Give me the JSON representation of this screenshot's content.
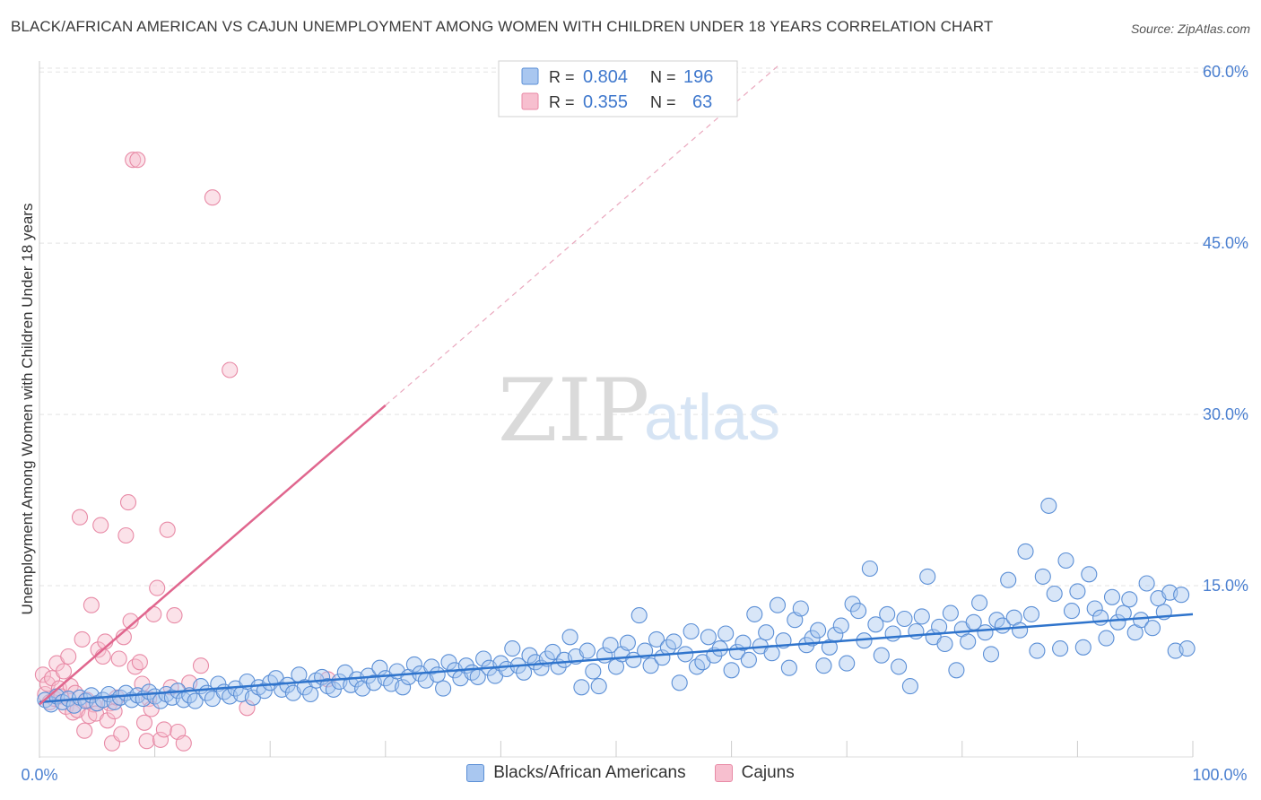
{
  "title": "BLACK/AFRICAN AMERICAN VS CAJUN UNEMPLOYMENT AMONG WOMEN WITH CHILDREN UNDER 18 YEARS CORRELATION CHART",
  "source": "Source: ZipAtlas.com",
  "watermark": {
    "zip": "ZIP",
    "atlas": "atlas"
  },
  "colors": {
    "blue_fill": "#a9c7f0",
    "blue_stroke": "#5b8fd6",
    "blue_line": "#2f74cc",
    "pink_fill": "#f7bfcf",
    "pink_stroke": "#e88aa6",
    "pink_line": "#e0668e",
    "grid": "#e3e3e3",
    "axis_text": "#4a7fd0"
  },
  "legend_top": {
    "rows": [
      {
        "r_label": "R =",
        "r_value": "0.804",
        "n_label": "N =",
        "n_value": "196"
      },
      {
        "r_label": "R =",
        "r_value": "0.355",
        "n_label": "N =",
        "n_value": "63"
      }
    ]
  },
  "legend_bottom": [
    {
      "label": "Blacks/African Americans"
    },
    {
      "label": "Cajuns"
    }
  ],
  "chart_data": {
    "type": "scatter",
    "title": "BLACK/AFRICAN AMERICAN VS CAJUN UNEMPLOYMENT AMONG WOMEN WITH CHILDREN UNDER 18 YEARS CORRELATION CHART",
    "xlabel": "",
    "ylabel": "Unemployment Among Women with Children Under 18 years",
    "xlim": [
      0,
      100
    ],
    "ylim": [
      0,
      63
    ],
    "x_tick_labels": [
      "0.0%",
      "100.0%"
    ],
    "y_ticks": [
      15,
      30,
      45,
      60
    ],
    "y_tick_labels": [
      "15.0%",
      "30.0%",
      "45.0%",
      "60.0%"
    ],
    "series": [
      {
        "name": "Blacks/African Americans",
        "R": 0.804,
        "N": 196,
        "trend": {
          "x0": 0,
          "y0": 4.8,
          "x1": 100,
          "y1": 12.5
        },
        "points": [
          [
            0.5,
            5.0
          ],
          [
            1,
            4.6
          ],
          [
            1.5,
            5.3
          ],
          [
            2,
            4.8
          ],
          [
            2.5,
            5.1
          ],
          [
            3,
            4.5
          ],
          [
            3.5,
            5.2
          ],
          [
            4,
            4.9
          ],
          [
            4.5,
            5.4
          ],
          [
            5,
            4.7
          ],
          [
            5.5,
            5.0
          ],
          [
            6,
            5.5
          ],
          [
            6.5,
            4.8
          ],
          [
            7,
            5.2
          ],
          [
            7.5,
            5.6
          ],
          [
            8,
            5.0
          ],
          [
            8.5,
            5.4
          ],
          [
            9,
            5.1
          ],
          [
            9.5,
            5.7
          ],
          [
            10,
            5.3
          ],
          [
            10.5,
            4.9
          ],
          [
            11,
            5.5
          ],
          [
            11.5,
            5.2
          ],
          [
            12,
            5.8
          ],
          [
            12.5,
            5.0
          ],
          [
            13,
            5.4
          ],
          [
            13.5,
            4.9
          ],
          [
            14,
            6.2
          ],
          [
            14.5,
            5.6
          ],
          [
            15,
            5.1
          ],
          [
            15.5,
            6.4
          ],
          [
            16,
            5.7
          ],
          [
            16.5,
            5.3
          ],
          [
            17,
            6.0
          ],
          [
            17.5,
            5.5
          ],
          [
            18,
            6.6
          ],
          [
            18.5,
            5.2
          ],
          [
            19,
            6.1
          ],
          [
            19.5,
            5.8
          ],
          [
            20,
            6.5
          ],
          [
            20.5,
            6.9
          ],
          [
            21,
            5.9
          ],
          [
            21.5,
            6.3
          ],
          [
            22,
            5.6
          ],
          [
            22.5,
            7.2
          ],
          [
            23,
            6.1
          ],
          [
            23.5,
            5.5
          ],
          [
            24,
            6.7
          ],
          [
            24.5,
            7.0
          ],
          [
            25,
            6.2
          ],
          [
            25.5,
            5.9
          ],
          [
            26,
            6.6
          ],
          [
            26.5,
            7.4
          ],
          [
            27,
            6.3
          ],
          [
            27.5,
            6.8
          ],
          [
            28,
            6.0
          ],
          [
            28.5,
            7.1
          ],
          [
            29,
            6.5
          ],
          [
            29.5,
            7.8
          ],
          [
            30,
            6.9
          ],
          [
            30.5,
            6.4
          ],
          [
            31,
            7.5
          ],
          [
            31.5,
            6.1
          ],
          [
            32,
            7.0
          ],
          [
            32.5,
            8.1
          ],
          [
            33,
            7.3
          ],
          [
            33.5,
            6.7
          ],
          [
            34,
            7.9
          ],
          [
            34.5,
            7.2
          ],
          [
            35,
            6.0
          ],
          [
            35.5,
            8.3
          ],
          [
            36,
            7.6
          ],
          [
            36.5,
            6.9
          ],
          [
            37,
            8.0
          ],
          [
            37.5,
            7.4
          ],
          [
            38,
            7.0
          ],
          [
            38.5,
            8.6
          ],
          [
            39,
            7.8
          ],
          [
            39.5,
            7.1
          ],
          [
            40,
            8.2
          ],
          [
            40.5,
            7.7
          ],
          [
            41,
            9.5
          ],
          [
            41.5,
            8.0
          ],
          [
            42,
            7.4
          ],
          [
            42.5,
            8.9
          ],
          [
            43,
            8.3
          ],
          [
            43.5,
            7.8
          ],
          [
            44,
            8.6
          ],
          [
            44.5,
            9.2
          ],
          [
            45,
            7.9
          ],
          [
            45.5,
            8.5
          ],
          [
            46,
            10.5
          ],
          [
            46.5,
            8.8
          ],
          [
            47,
            6.1
          ],
          [
            47.5,
            9.3
          ],
          [
            48,
            7.5
          ],
          [
            48.5,
            6.2
          ],
          [
            49,
            8.9
          ],
          [
            49.5,
            9.8
          ],
          [
            50,
            7.9
          ],
          [
            50.5,
            9.0
          ],
          [
            51,
            10.0
          ],
          [
            51.5,
            8.5
          ],
          [
            52,
            12.4
          ],
          [
            52.5,
            9.3
          ],
          [
            53,
            8.0
          ],
          [
            53.5,
            10.3
          ],
          [
            54,
            8.7
          ],
          [
            54.5,
            9.6
          ],
          [
            55,
            10.1
          ],
          [
            55.5,
            6.5
          ],
          [
            56,
            9.0
          ],
          [
            56.5,
            11.0
          ],
          [
            57,
            7.9
          ],
          [
            57.5,
            8.3
          ],
          [
            58,
            10.5
          ],
          [
            58.5,
            8.9
          ],
          [
            59,
            9.5
          ],
          [
            59.5,
            10.8
          ],
          [
            60,
            7.6
          ],
          [
            60.5,
            9.2
          ],
          [
            61,
            10.0
          ],
          [
            61.5,
            8.5
          ],
          [
            62,
            12.5
          ],
          [
            62.5,
            9.7
          ],
          [
            63,
            10.9
          ],
          [
            63.5,
            9.1
          ],
          [
            64,
            13.3
          ],
          [
            64.5,
            10.2
          ],
          [
            65,
            7.8
          ],
          [
            65.5,
            12.0
          ],
          [
            66,
            13.0
          ],
          [
            66.5,
            9.8
          ],
          [
            67,
            10.4
          ],
          [
            67.5,
            11.1
          ],
          [
            68,
            8.0
          ],
          [
            68.5,
            9.6
          ],
          [
            69,
            10.7
          ],
          [
            69.5,
            11.5
          ],
          [
            70,
            8.2
          ],
          [
            70.5,
            13.4
          ],
          [
            71,
            12.8
          ],
          [
            71.5,
            10.2
          ],
          [
            72,
            16.5
          ],
          [
            72.5,
            11.6
          ],
          [
            73,
            8.9
          ],
          [
            73.5,
            12.5
          ],
          [
            74,
            10.8
          ],
          [
            74.5,
            7.9
          ],
          [
            75,
            12.1
          ],
          [
            75.5,
            6.2
          ],
          [
            76,
            11.0
          ],
          [
            76.5,
            12.3
          ],
          [
            77,
            15.8
          ],
          [
            77.5,
            10.5
          ],
          [
            78,
            11.4
          ],
          [
            78.5,
            9.9
          ],
          [
            79,
            12.6
          ],
          [
            79.5,
            7.6
          ],
          [
            80,
            11.2
          ],
          [
            80.5,
            10.1
          ],
          [
            81,
            11.8
          ],
          [
            81.5,
            13.5
          ],
          [
            82,
            10.9
          ],
          [
            82.5,
            9.0
          ],
          [
            83,
            12.0
          ],
          [
            83.5,
            11.5
          ],
          [
            84,
            15.5
          ],
          [
            84.5,
            12.2
          ],
          [
            85,
            11.1
          ],
          [
            85.5,
            18.0
          ],
          [
            86,
            12.5
          ],
          [
            86.5,
            9.3
          ],
          [
            87,
            15.8
          ],
          [
            87.5,
            22.0
          ],
          [
            88,
            14.3
          ],
          [
            88.5,
            9.5
          ],
          [
            89,
            17.2
          ],
          [
            89.5,
            12.8
          ],
          [
            90,
            14.5
          ],
          [
            90.5,
            9.6
          ],
          [
            91,
            16.0
          ],
          [
            91.5,
            13.0
          ],
          [
            92,
            12.2
          ],
          [
            92.5,
            10.4
          ],
          [
            93,
            14.0
          ],
          [
            93.5,
            11.8
          ],
          [
            94,
            12.6
          ],
          [
            94.5,
            13.8
          ],
          [
            95,
            10.9
          ],
          [
            95.5,
            12.0
          ],
          [
            96,
            15.2
          ],
          [
            96.5,
            11.3
          ],
          [
            97,
            13.9
          ],
          [
            97.5,
            12.7
          ],
          [
            98,
            14.4
          ],
          [
            98.5,
            9.3
          ],
          [
            99,
            14.2
          ],
          [
            99.5,
            9.5
          ]
        ]
      },
      {
        "name": "Cajuns",
        "R": 0.355,
        "N": 63,
        "trend": {
          "x0": 0,
          "y0": 4.6,
          "x1": 30,
          "y1": 30.8
        },
        "trend_dashed": {
          "x0": 30,
          "y0": 30.8,
          "x1": 64,
          "y1": 60.5
        },
        "points": [
          [
            0.3,
            7.2
          ],
          [
            0.5,
            5.5
          ],
          [
            0.7,
            6.4
          ],
          [
            0.9,
            4.8
          ],
          [
            1.1,
            6.9
          ],
          [
            1.3,
            5.1
          ],
          [
            1.5,
            8.2
          ],
          [
            1.7,
            6.0
          ],
          [
            1.9,
            5.3
          ],
          [
            2.1,
            7.5
          ],
          [
            2.3,
            4.4
          ],
          [
            2.5,
            8.8
          ],
          [
            2.7,
            6.2
          ],
          [
            2.9,
            3.9
          ],
          [
            3.1,
            5.6
          ],
          [
            3.3,
            4.1
          ],
          [
            3.5,
            21.0
          ],
          [
            3.7,
            10.3
          ],
          [
            3.9,
            2.3
          ],
          [
            4.1,
            5.0
          ],
          [
            4.3,
            3.6
          ],
          [
            4.5,
            13.3
          ],
          [
            4.7,
            4.6
          ],
          [
            4.9,
            3.8
          ],
          [
            5.1,
            9.4
          ],
          [
            5.3,
            20.3
          ],
          [
            5.5,
            8.8
          ],
          [
            5.7,
            10.1
          ],
          [
            5.9,
            3.2
          ],
          [
            6.1,
            4.7
          ],
          [
            6.3,
            1.2
          ],
          [
            6.5,
            4.0
          ],
          [
            6.7,
            5.2
          ],
          [
            6.9,
            8.6
          ],
          [
            7.1,
            2.0
          ],
          [
            7.3,
            10.5
          ],
          [
            7.5,
            19.4
          ],
          [
            7.7,
            22.3
          ],
          [
            7.9,
            11.9
          ],
          [
            8.1,
            52.3
          ],
          [
            8.3,
            7.9
          ],
          [
            8.5,
            52.3
          ],
          [
            8.7,
            8.3
          ],
          [
            8.9,
            6.4
          ],
          [
            9.1,
            3.0
          ],
          [
            9.3,
            1.4
          ],
          [
            9.5,
            5.1
          ],
          [
            9.7,
            4.2
          ],
          [
            9.9,
            12.5
          ],
          [
            10.2,
            14.8
          ],
          [
            10.5,
            1.5
          ],
          [
            10.8,
            2.4
          ],
          [
            11.1,
            19.9
          ],
          [
            11.4,
            6.1
          ],
          [
            11.7,
            12.4
          ],
          [
            12.0,
            2.2
          ],
          [
            12.5,
            1.2
          ],
          [
            13.0,
            6.5
          ],
          [
            14.0,
            8.0
          ],
          [
            15.0,
            49.0
          ],
          [
            16.5,
            33.9
          ],
          [
            18.0,
            4.3
          ],
          [
            25.0,
            6.8
          ]
        ]
      }
    ]
  }
}
